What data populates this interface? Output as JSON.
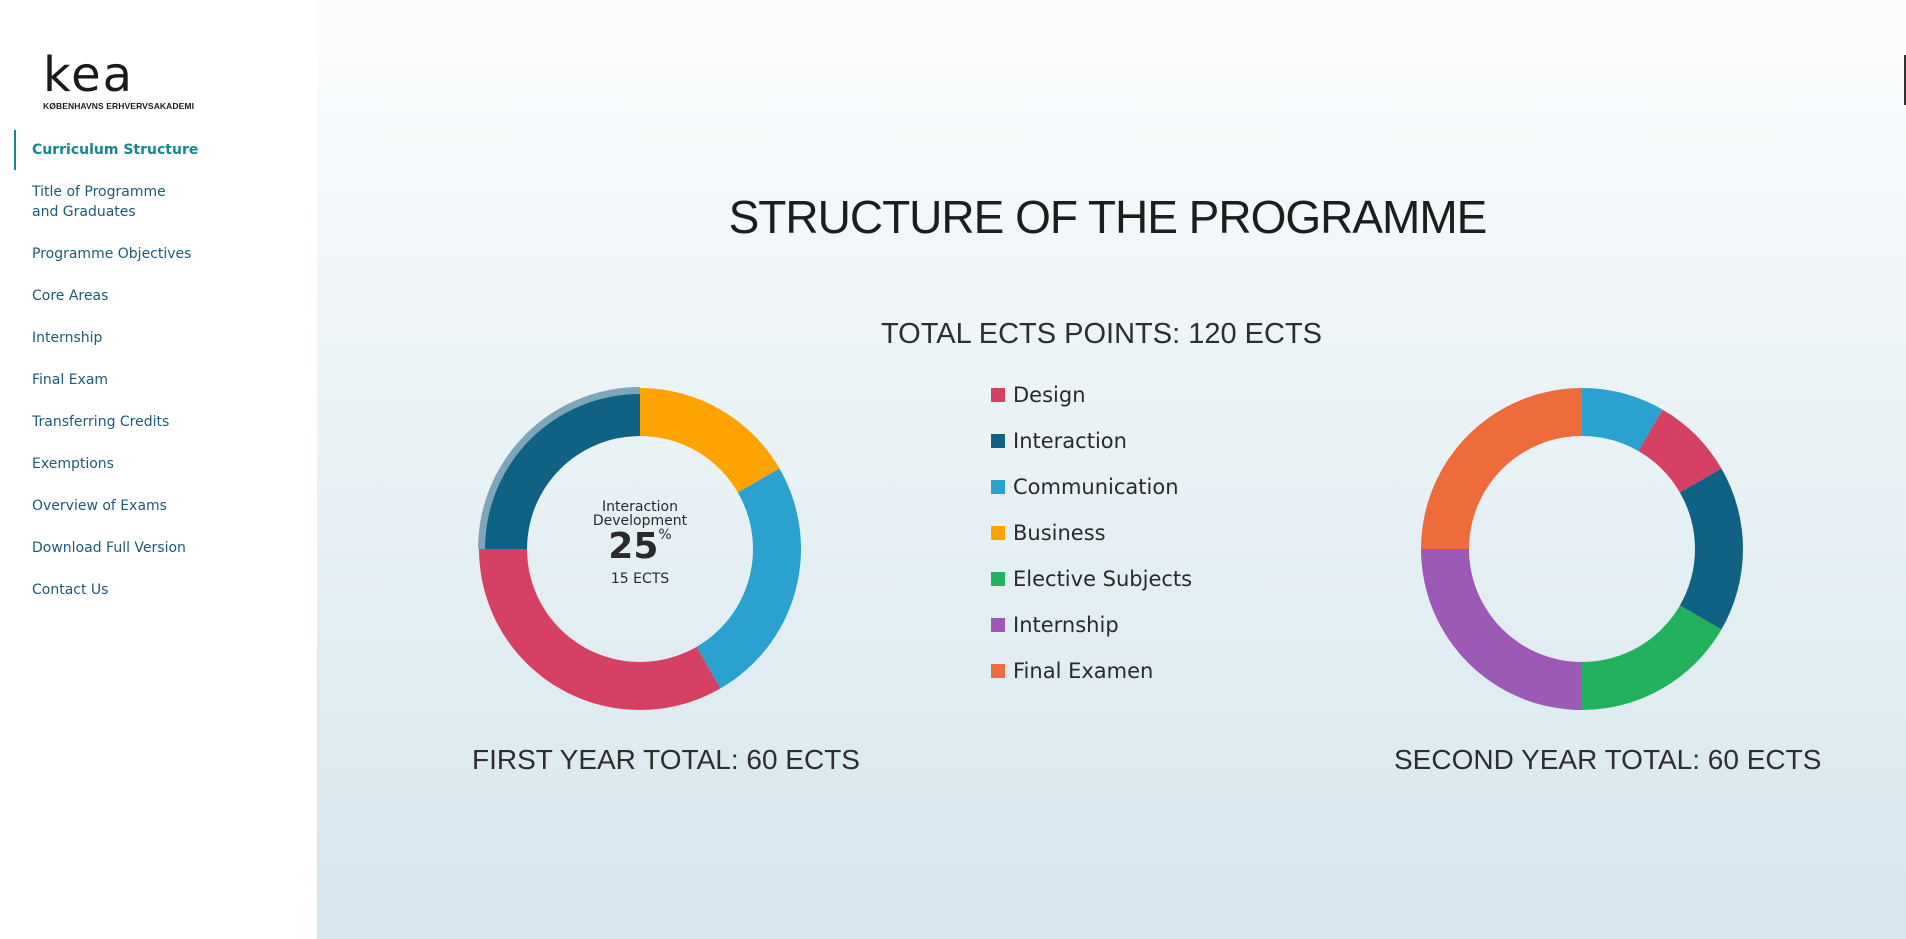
{
  "logo": {
    "word": "kea",
    "subtitle": "KØBENHAVNS ERHVERVSAKADEMI"
  },
  "nav": {
    "items": [
      {
        "label": "Curriculum Structure",
        "active": true
      },
      {
        "label_line1": "Title of Programme",
        "label_line2": "and Graduates"
      },
      {
        "label": "Programme Objectives"
      },
      {
        "label": "Core Areas"
      },
      {
        "label": "Internship"
      },
      {
        "label": "Final Exam"
      },
      {
        "label": "Transferring Credits"
      },
      {
        "label": "Exemptions"
      },
      {
        "label": "Overview of Exams"
      },
      {
        "label": "Download Full Version"
      },
      {
        "label": "Contact Us"
      }
    ]
  },
  "page": {
    "title": "STRUCTURE OF THE PROGRAMME",
    "total": "TOTAL ECTS POINTS: 120 ECTS",
    "first_year_label": "FIRST YEAR TOTAL: 60 ECTS",
    "second_year_label": "SECOND YEAR TOTAL: 60 ECTS"
  },
  "center_info": {
    "line1": "Interaction",
    "line2": "Development",
    "percent": "25",
    "percent_sign": "%",
    "ects": "15 ECTS"
  },
  "colors": {
    "Design": "#d64163",
    "Interaction": "#0f6283",
    "Communication": "#2aa1cf",
    "Business": "#fea302",
    "Elective Subjects": "#24b15e",
    "Internship": "#9c59b6",
    "Final Examen": "#ee6b3b",
    "highlight": "#7fa6b8"
  },
  "chart_data": [
    {
      "type": "pie",
      "variant": "donut",
      "title": "FIRST YEAR TOTAL: 60 ECTS",
      "legend": [
        "Design",
        "Interaction",
        "Communication",
        "Business",
        "Elective Subjects",
        "Internship",
        "Final Examen"
      ],
      "slices": [
        {
          "name": "Business",
          "value": 10
        },
        {
          "name": "Communication",
          "value": 15
        },
        {
          "name": "Design",
          "value": 20
        },
        {
          "name": "Interaction",
          "value": 15
        }
      ],
      "highlighted": "Interaction",
      "highlight_text": "Interaction Development 25% 15 ECTS"
    },
    {
      "type": "pie",
      "variant": "donut",
      "title": "SECOND YEAR TOTAL: 60 ECTS",
      "slices": [
        {
          "name": "Communication",
          "value": 5
        },
        {
          "name": "Design",
          "value": 5
        },
        {
          "name": "Interaction",
          "value": 10
        },
        {
          "name": "Elective Subjects",
          "value": 10
        },
        {
          "name": "Internship",
          "value": 15
        },
        {
          "name": "Final Examen",
          "value": 15
        }
      ]
    }
  ]
}
